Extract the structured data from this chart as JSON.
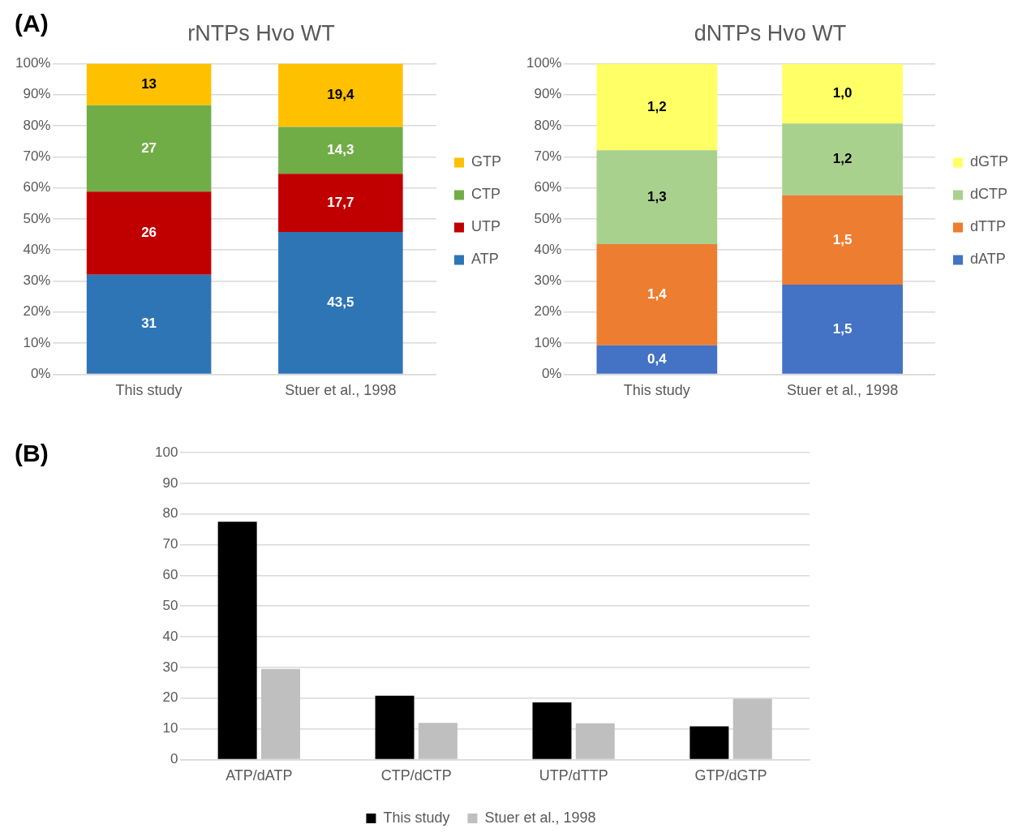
{
  "chart_data": [
    {
      "type": "bar",
      "title": "rNTPs Hvo WT",
      "categories": [
        "This study",
        "Stuer et al., 1998"
      ],
      "stacked": true,
      "grid": "y",
      "legend": "right",
      "annotations": [
        "(A)",
        "31",
        "26",
        "27",
        "13",
        "43,5",
        "17,7",
        "14,3",
        "19,4"
      ],
      "ylim": [
        0,
        100
      ],
      "yticks": [
        {
          "value": 0,
          "label": "0%"
        },
        {
          "value": 10,
          "label": "10%"
        },
        {
          "value": 20,
          "label": "20%"
        },
        {
          "value": 30,
          "label": "30%"
        },
        {
          "value": 40,
          "label": "40%"
        },
        {
          "value": 50,
          "label": "50%"
        },
        {
          "value": 60,
          "label": "60%"
        },
        {
          "value": 70,
          "label": "70%"
        },
        {
          "value": 80,
          "label": "80%"
        },
        {
          "value": 90,
          "label": "90%"
        },
        {
          "value": 100,
          "label": "100%"
        }
      ],
      "series": [
        {
          "name": "ATP",
          "color": "#2e75b6",
          "values": [
            32.0,
            45.8
          ]
        },
        {
          "name": "UTP",
          "color": "#c00000",
          "values": [
            26.8,
            18.7
          ]
        },
        {
          "name": "CTP",
          "color": "#70ad47",
          "values": [
            27.8,
            15.1
          ]
        },
        {
          "name": "GTP",
          "color": "#ffc000",
          "values": [
            13.4,
            20.4
          ]
        }
      ]
    },
    {
      "type": "bar",
      "title": "dNTPs Hvo WT",
      "categories": [
        "This study",
        "Stuer et al., 1998"
      ],
      "stacked": true,
      "grid": "y",
      "legend": "right",
      "annotations": [
        "0,4",
        "1,4",
        "1,3",
        "1,2",
        "1,5",
        "1,5",
        "1,2",
        "1,0"
      ],
      "ylim": [
        0,
        100
      ],
      "yticks": [
        {
          "value": 0,
          "label": "0%"
        },
        {
          "value": 10,
          "label": "10%"
        },
        {
          "value": 20,
          "label": "20%"
        },
        {
          "value": 30,
          "label": "30%"
        },
        {
          "value": 40,
          "label": "40%"
        },
        {
          "value": 50,
          "label": "50%"
        },
        {
          "value": 60,
          "label": "60%"
        },
        {
          "value": 70,
          "label": "70%"
        },
        {
          "value": 80,
          "label": "80%"
        },
        {
          "value": 90,
          "label": "90%"
        },
        {
          "value": 100,
          "label": "100%"
        }
      ],
      "series": [
        {
          "name": "dATP",
          "color": "#4472c4",
          "values": [
            9.3,
            28.8
          ]
        },
        {
          "name": "dTTP",
          "color": "#ed7d31",
          "values": [
            32.6,
            28.8
          ]
        },
        {
          "name": "dCTP",
          "color": "#a9d18e",
          "values": [
            30.2,
            23.1
          ]
        },
        {
          "name": "dGTP",
          "color": "#ffff66",
          "values": [
            27.9,
            19.2
          ]
        }
      ]
    },
    {
      "type": "bar",
      "annotations": [
        "(B)"
      ],
      "categories": [
        "ATP/dATP",
        "CTP/dCTP",
        "UTP/dTTP",
        "GTP/dGTP"
      ],
      "grid": "y",
      "legend": "bottom",
      "ylim": [
        0,
        100
      ],
      "yticks": [
        0,
        10,
        20,
        30,
        40,
        50,
        60,
        70,
        80,
        90,
        100
      ],
      "series": [
        {
          "name": "This study",
          "color": "#000000",
          "values": [
            77.5,
            20.8,
            18.6,
            10.8
          ]
        },
        {
          "name": "Stuer et al., 1998",
          "color": "#bfbfbf",
          "values": [
            29.5,
            11.9,
            11.8,
            19.8
          ]
        }
      ]
    }
  ]
}
